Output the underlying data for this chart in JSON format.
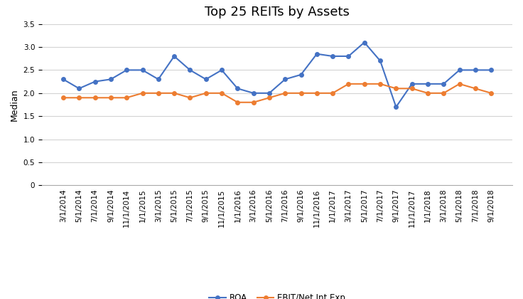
{
  "title": "Top 25 REITs by Assets",
  "ylabel": "Median",
  "labels": [
    "3/1/2014",
    "5/1/2014",
    "7/1/2014",
    "9/1/2014",
    "11/1/2014",
    "1/1/2015",
    "3/1/2015",
    "5/1/2015",
    "7/1/2015",
    "9/1/2015",
    "11/1/2015",
    "1/1/2016",
    "3/1/2016",
    "5/1/2016",
    "7/1/2016",
    "9/1/2016",
    "11/1/2016",
    "1/1/2017",
    "3/1/2017",
    "5/1/2017",
    "7/1/2017",
    "9/1/2017",
    "11/1/2017",
    "1/1/2018",
    "3/1/2018",
    "5/1/2018",
    "7/1/2018",
    "9/1/2018"
  ],
  "roa": [
    2.3,
    2.1,
    2.25,
    2.3,
    2.5,
    2.5,
    2.3,
    2.8,
    2.5,
    2.3,
    2.5,
    2.1,
    2.0,
    2.0,
    2.3,
    2.4,
    2.85,
    2.8,
    2.8,
    3.1,
    2.7,
    1.7,
    2.2,
    2.2,
    2.2,
    2.5,
    2.5,
    2.5
  ],
  "ebit": [
    1.9,
    1.9,
    1.9,
    1.9,
    1.9,
    2.0,
    2.0,
    2.0,
    1.9,
    2.0,
    2.0,
    1.8,
    1.8,
    1.9,
    2.0,
    2.0,
    2.0,
    2.0,
    2.2,
    2.2,
    2.2,
    2.1,
    2.1,
    2.0,
    2.0,
    2.2,
    2.1,
    2.0
  ],
  "roa_color": "#4472C4",
  "ebit_color": "#ED7D31",
  "roa_label": "ROA",
  "ebit_label": "EBIT/Net Int Exp",
  "ylim": [
    0,
    3.5
  ],
  "yticks": [
    0,
    0.5,
    1.0,
    1.5,
    2.0,
    2.5,
    3.0,
    3.5
  ],
  "background_color": "#ffffff",
  "grid_color": "#d3d3d3",
  "title_fontsize": 13,
  "axis_fontsize": 9,
  "tick_fontsize": 7.5,
  "legend_fontsize": 8.5,
  "marker": "o",
  "markersize": 4,
  "linewidth": 1.5
}
